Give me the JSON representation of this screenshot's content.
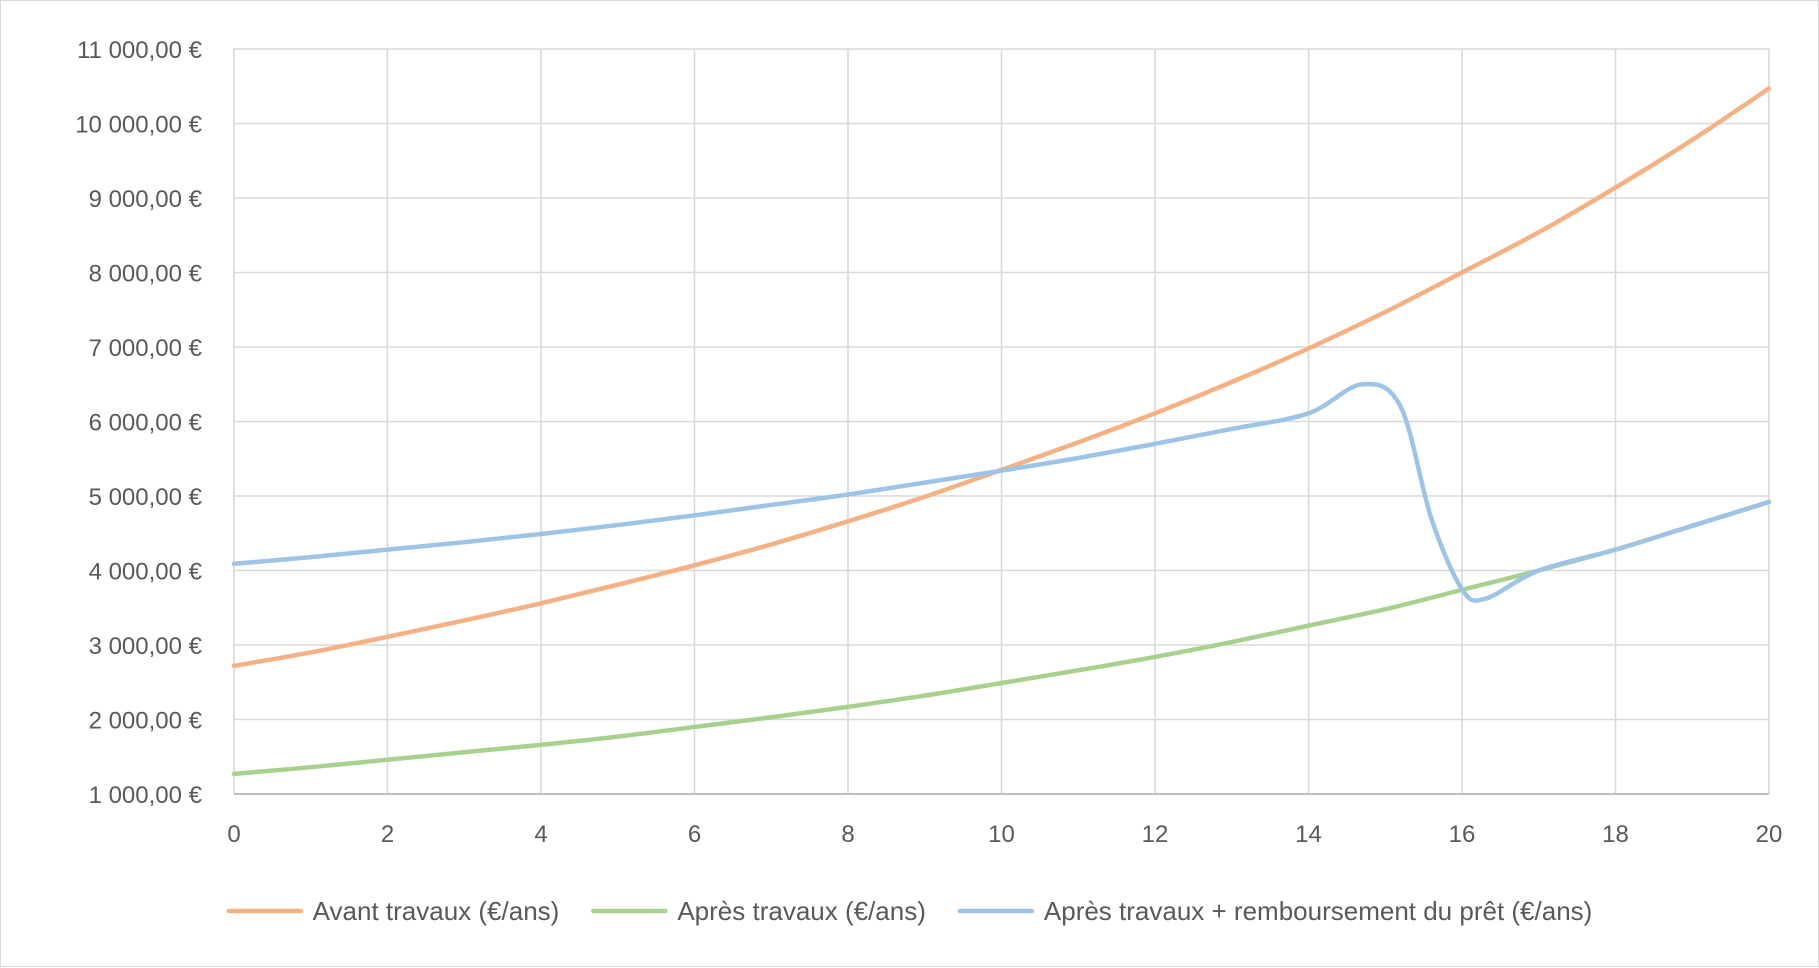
{
  "chart_data": {
    "type": "line",
    "title": "",
    "xlabel": "",
    "ylabel": "",
    "xlim": [
      0,
      20
    ],
    "ylim": [
      1000,
      11000
    ],
    "x_ticks": [
      0,
      2,
      4,
      6,
      8,
      10,
      12,
      14,
      16,
      18,
      20
    ],
    "x_tick_labels": [
      "0",
      "2",
      "4",
      "6",
      "8",
      "10",
      "12",
      "14",
      "16",
      "18",
      "20"
    ],
    "y_ticks": [
      1000,
      2000,
      3000,
      4000,
      5000,
      6000,
      7000,
      8000,
      9000,
      10000,
      11000
    ],
    "y_tick_labels": [
      "1 000,00 €",
      "2 000,00 €",
      "3 000,00 €",
      "4 000,00 €",
      "5 000,00 €",
      "6 000,00 €",
      "7 000,00 €",
      "8 000,00 €",
      "9 000,00 €",
      "10 000,00 €",
      "11 000,00 €"
    ],
    "grid": true,
    "legend_position": "bottom",
    "series": [
      {
        "name": "Avant travaux (€/ans)",
        "color": "#f4b183",
        "points": [
          [
            0,
            2720
          ],
          [
            1,
            2900
          ],
          [
            2,
            3110
          ],
          [
            3,
            3330
          ],
          [
            4,
            3560
          ],
          [
            5,
            3810
          ],
          [
            6,
            4070
          ],
          [
            7,
            4350
          ],
          [
            8,
            4660
          ],
          [
            9,
            4990
          ],
          [
            10,
            5350
          ],
          [
            11,
            5720
          ],
          [
            12,
            6110
          ],
          [
            13,
            6530
          ],
          [
            14,
            6980
          ],
          [
            15,
            7470
          ],
          [
            16,
            8000
          ],
          [
            17,
            8540
          ],
          [
            18,
            9140
          ],
          [
            19,
            9780
          ],
          [
            20,
            10470
          ]
        ]
      },
      {
        "name": "Après travaux (€/ans)",
        "color": "#a9d18e",
        "points": [
          [
            0,
            1270
          ],
          [
            1,
            1360
          ],
          [
            2,
            1460
          ],
          [
            3,
            1560
          ],
          [
            4,
            1660
          ],
          [
            5,
            1770
          ],
          [
            6,
            1900
          ],
          [
            7,
            2030
          ],
          [
            8,
            2170
          ],
          [
            9,
            2320
          ],
          [
            10,
            2490
          ],
          [
            11,
            2660
          ],
          [
            12,
            2840
          ],
          [
            13,
            3040
          ],
          [
            14,
            3260
          ],
          [
            15,
            3480
          ],
          [
            16,
            3740
          ],
          [
            17,
            4000
          ],
          [
            18,
            4280
          ],
          [
            19,
            4600
          ],
          [
            20,
            4920
          ]
        ]
      },
      {
        "name": "Après travaux + remboursement du prêt (€/ans)",
        "color": "#9dc3e6",
        "points": [
          [
            0,
            4090
          ],
          [
            1,
            4180
          ],
          [
            2,
            4280
          ],
          [
            3,
            4380
          ],
          [
            4,
            4490
          ],
          [
            5,
            4610
          ],
          [
            6,
            4740
          ],
          [
            7,
            4880
          ],
          [
            8,
            5020
          ],
          [
            9,
            5180
          ],
          [
            10,
            5340
          ],
          [
            11,
            5510
          ],
          [
            12,
            5700
          ],
          [
            13,
            5900
          ],
          [
            14,
            6110
          ],
          [
            14.7,
            6500
          ],
          [
            15.2,
            6200
          ],
          [
            15.6,
            4700
          ],
          [
            16,
            3750
          ],
          [
            16.3,
            3620
          ],
          [
            17,
            4000
          ],
          [
            18,
            4280
          ],
          [
            19,
            4600
          ],
          [
            20,
            4920
          ]
        ]
      }
    ]
  }
}
